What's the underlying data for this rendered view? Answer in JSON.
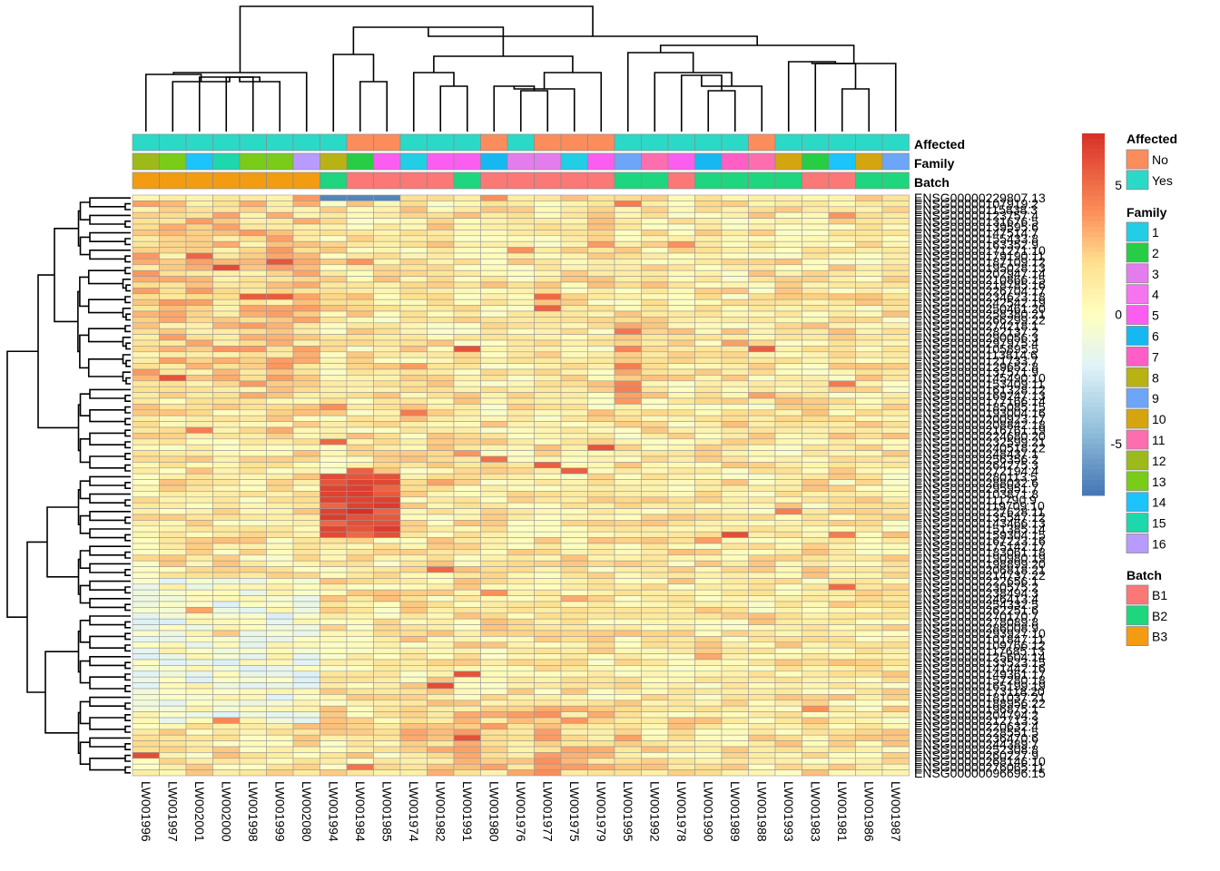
{
  "chart_data": {
    "type": "heatmap",
    "title": "",
    "columns": [
      "LW001996",
      "LW001997",
      "LW002001",
      "LW002000",
      "LW001998",
      "LW001999",
      "LW002080",
      "LW001994",
      "LW001984",
      "LW001985",
      "LW001974",
      "LW001982",
      "LW001991",
      "LW001980",
      "LW001976",
      "LW001977",
      "LW001975",
      "LW001979",
      "LW001995",
      "LW001992",
      "LW001978",
      "LW001990",
      "LW001989",
      "LW001988",
      "LW001993",
      "LW001983",
      "LW001981",
      "LW001986",
      "LW001987"
    ],
    "row_label_first": "ENSG00000229807.13",
    "row_label_last": "ENSG00000096696.15",
    "row_count": 100,
    "annotation_tracks": [
      "Affected",
      "Family",
      "Batch"
    ],
    "annotations": {
      "Affected": [
        "Yes",
        "Yes",
        "Yes",
        "Yes",
        "Yes",
        "Yes",
        "Yes",
        "Yes",
        "No",
        "No",
        "Yes",
        "Yes",
        "Yes",
        "No",
        "Yes",
        "No",
        "No",
        "No",
        "Yes",
        "Yes",
        "Yes",
        "Yes",
        "Yes",
        "No",
        "Yes",
        "Yes",
        "Yes",
        "Yes",
        "Yes"
      ],
      "Family": [
        "12",
        "13",
        "14",
        "15",
        "13",
        "13",
        "16",
        "8",
        "2",
        "5",
        "1",
        "5",
        "5",
        "6",
        "3",
        "3",
        "1",
        "5",
        "9",
        "11",
        "5",
        "6",
        "7",
        "11",
        "10",
        "2",
        "14",
        "10",
        "9"
      ],
      "Batch": [
        "B3",
        "B3",
        "B3",
        "B3",
        "B3",
        "B3",
        "B3",
        "B2",
        "B1",
        "B1",
        "B1",
        "B1",
        "B2",
        "B1",
        "B1",
        "B1",
        "B1",
        "B1",
        "B2",
        "B2",
        "B1",
        "B2",
        "B2",
        "B2",
        "B2",
        "B1",
        "B1",
        "B2",
        "B2"
      ]
    },
    "colorbar": {
      "ticks": [
        5,
        0,
        -5
      ],
      "min": -7,
      "max": 7
    },
    "legends": {
      "affected": {
        "title": "Affected",
        "items": [
          {
            "label": "No",
            "color": "#FB8D5C"
          },
          {
            "label": "Yes",
            "color": "#2BD9C7"
          }
        ]
      },
      "family": {
        "title": "Family",
        "items": [
          {
            "label": "1",
            "color": "#22CEE5"
          },
          {
            "label": "2",
            "color": "#27CD44"
          },
          {
            "label": "3",
            "color": "#E57CEE"
          },
          {
            "label": "4",
            "color": "#F873EF"
          },
          {
            "label": "5",
            "color": "#FB5DF1"
          },
          {
            "label": "6",
            "color": "#16B8F2"
          },
          {
            "label": "7",
            "color": "#FE5EC6"
          },
          {
            "label": "8",
            "color": "#B8B214"
          },
          {
            "label": "9",
            "color": "#6DA6F8"
          },
          {
            "label": "10",
            "color": "#D4A50E"
          },
          {
            "label": "11",
            "color": "#FE6EAF"
          },
          {
            "label": "12",
            "color": "#9DBA1A"
          },
          {
            "label": "13",
            "color": "#79CC18"
          },
          {
            "label": "14",
            "color": "#1BC4FA"
          },
          {
            "label": "15",
            "color": "#1DD8AC"
          },
          {
            "label": "16",
            "color": "#B99BFE"
          }
        ]
      },
      "batch": {
        "title": "Batch",
        "items": [
          {
            "label": "B1",
            "color": "#FA7876"
          },
          {
            "label": "B2",
            "color": "#1ED67E"
          },
          {
            "label": "B3",
            "color": "#F39C12"
          }
        ]
      }
    }
  }
}
